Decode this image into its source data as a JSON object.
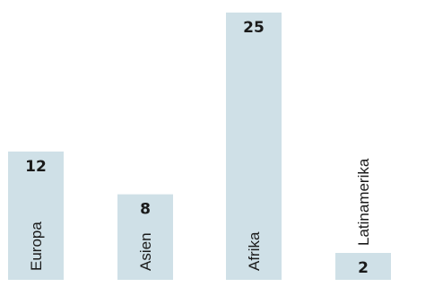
{
  "chart_data": {
    "type": "bar",
    "categories": [
      "Europa",
      "Asien",
      "Afrika",
      "Latinamerika"
    ],
    "values": [
      12,
      8,
      25,
      2
    ],
    "title": "",
    "xlabel": "",
    "ylabel": "",
    "ylim": [
      0,
      25
    ],
    "grid": false,
    "legend": "none",
    "bar_color": "#cfe0e7"
  }
}
